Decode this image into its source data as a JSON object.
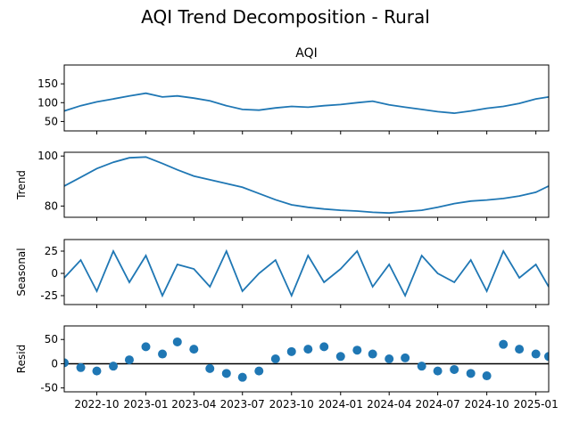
{
  "figure": {
    "title": "AQI Trend Decomposition - Rural",
    "series_color": "#1f77b4"
  },
  "chart_data": [
    {
      "type": "line",
      "title": "AQI",
      "ylabel": "",
      "ylim": [
        25,
        200
      ],
      "yticks": [
        50,
        100,
        150
      ],
      "x_range": [
        "2022-08-01",
        "2025-01-25"
      ],
      "x": [
        "2022-08-01",
        "2022-09-01",
        "2022-10-01",
        "2022-11-01",
        "2022-12-01",
        "2023-01-01",
        "2023-02-01",
        "2023-03-01",
        "2023-04-01",
        "2023-05-01",
        "2023-06-01",
        "2023-07-01",
        "2023-08-01",
        "2023-09-01",
        "2023-10-01",
        "2023-11-01",
        "2023-12-01",
        "2024-01-01",
        "2024-02-01",
        "2024-03-01",
        "2024-04-01",
        "2024-05-01",
        "2024-06-01",
        "2024-07-01",
        "2024-08-01",
        "2024-09-01",
        "2024-10-01",
        "2024-11-01",
        "2024-12-01",
        "2025-01-01",
        "2025-01-25"
      ],
      "values": [
        78,
        92,
        102,
        110,
        118,
        125,
        115,
        118,
        112,
        105,
        92,
        82,
        80,
        86,
        90,
        88,
        92,
        95,
        100,
        104,
        94,
        88,
        82,
        76,
        72,
        78,
        85,
        90,
        98,
        110,
        115
      ]
    },
    {
      "type": "line",
      "title": "",
      "ylabel": "Trend",
      "ylim": [
        75.5,
        101.5
      ],
      "yticks": [
        80,
        100
      ],
      "x_range": [
        "2022-08-01",
        "2025-01-25"
      ],
      "x": [
        "2022-08-01",
        "2022-09-01",
        "2022-10-01",
        "2022-11-01",
        "2022-12-01",
        "2023-01-01",
        "2023-02-01",
        "2023-03-01",
        "2023-04-01",
        "2023-05-01",
        "2023-06-01",
        "2023-07-01",
        "2023-08-01",
        "2023-09-01",
        "2023-10-01",
        "2023-11-01",
        "2023-12-01",
        "2024-01-01",
        "2024-02-01",
        "2024-03-01",
        "2024-04-01",
        "2024-05-01",
        "2024-06-01",
        "2024-07-01",
        "2024-08-01",
        "2024-09-01",
        "2024-10-01",
        "2024-11-01",
        "2024-12-01",
        "2025-01-01",
        "2025-01-25"
      ],
      "values": [
        88,
        91.5,
        95,
        97.5,
        99.3,
        99.6,
        97,
        94.5,
        92,
        90.5,
        89,
        87.5,
        85,
        82.5,
        80.5,
        79.5,
        78.8,
        78.3,
        78,
        77.5,
        77.2,
        77.8,
        78.3,
        79.5,
        81,
        82,
        82.4,
        83,
        84,
        85.5,
        88
      ]
    },
    {
      "type": "line",
      "title": "",
      "ylabel": "Seasonal",
      "ylim": [
        -35,
        38
      ],
      "yticks": [
        -25,
        0,
        25
      ],
      "x_range": [
        "2022-08-01",
        "2025-01-25"
      ],
      "x": [
        "2022-08-01",
        "2022-09-01",
        "2022-10-01",
        "2022-11-01",
        "2022-12-01",
        "2023-01-01",
        "2023-02-01",
        "2023-03-01",
        "2023-04-01",
        "2023-05-01",
        "2023-06-01",
        "2023-07-01",
        "2023-08-01",
        "2023-09-01",
        "2023-10-01",
        "2023-11-01",
        "2023-12-01",
        "2024-01-01",
        "2024-02-01",
        "2024-03-01",
        "2024-04-01",
        "2024-05-01",
        "2024-06-01",
        "2024-07-01",
        "2024-08-01",
        "2024-09-01",
        "2024-10-01",
        "2024-11-01",
        "2024-12-01",
        "2025-01-01",
        "2025-01-25"
      ],
      "values": [
        -5,
        15,
        -20,
        25,
        -10,
        20,
        -25,
        10,
        5,
        -15,
        25,
        -20,
        0,
        15,
        -25,
        20,
        -10,
        5,
        25,
        -15,
        10,
        -25,
        20,
        0,
        -10,
        15,
        -20,
        25,
        -5,
        10,
        -15
      ]
    },
    {
      "type": "scatter",
      "title": "",
      "ylabel": "Resid",
      "ylim": [
        -58,
        78
      ],
      "yticks": [
        -50,
        0,
        50
      ],
      "x_range": [
        "2022-08-01",
        "2025-01-25"
      ],
      "x": [
        "2022-08-01",
        "2022-09-01",
        "2022-10-01",
        "2022-11-01",
        "2022-12-01",
        "2023-01-01",
        "2023-02-01",
        "2023-03-01",
        "2023-04-01",
        "2023-05-01",
        "2023-06-01",
        "2023-07-01",
        "2023-08-01",
        "2023-09-01",
        "2023-10-01",
        "2023-11-01",
        "2023-12-01",
        "2024-01-01",
        "2024-02-01",
        "2024-03-01",
        "2024-04-01",
        "2024-05-01",
        "2024-06-01",
        "2024-07-01",
        "2024-08-01",
        "2024-09-01",
        "2024-10-01",
        "2024-11-01",
        "2024-12-01",
        "2025-01-01",
        "2025-01-25"
      ],
      "values": [
        2,
        -8,
        -15,
        -5,
        8,
        35,
        20,
        45,
        30,
        -10,
        -20,
        -28,
        -15,
        10,
        25,
        30,
        35,
        15,
        28,
        20,
        10,
        12,
        -5,
        -15,
        -12,
        -20,
        -25,
        40,
        30,
        20,
        15
      ],
      "reference_line": 0,
      "xtick_labels": [
        "2022-10",
        "2023-01",
        "2023-04",
        "2023-07",
        "2023-10",
        "2024-01",
        "2024-04",
        "2024-07",
        "2024-10",
        "2025-01"
      ],
      "xtick_dates": [
        "2022-10-01",
        "2023-01-01",
        "2023-04-01",
        "2023-07-01",
        "2023-10-01",
        "2024-01-01",
        "2024-04-01",
        "2024-07-01",
        "2024-10-01",
        "2025-01-01"
      ]
    }
  ]
}
